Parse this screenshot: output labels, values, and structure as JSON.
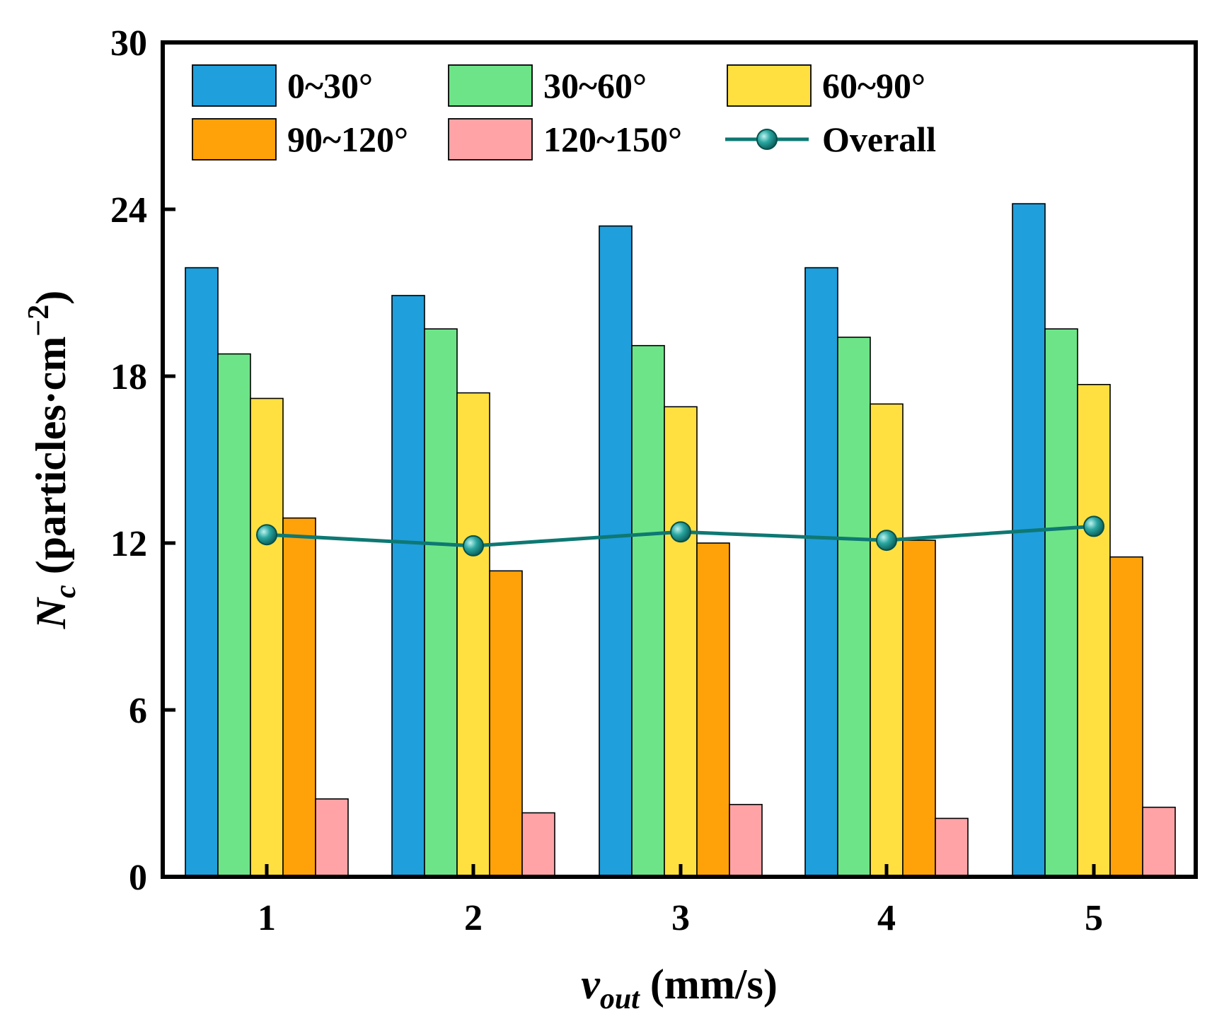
{
  "chart_data": {
    "type": "bar",
    "categories": [
      "1",
      "2",
      "3",
      "4",
      "5"
    ],
    "xlabel": {
      "main": "v",
      "sub": "out",
      "unit": " (mm/s)"
    },
    "ylabel": {
      "main": "N",
      "sub": "c",
      "unit": " (particles·cm",
      "sup": "−2",
      "close": ")"
    },
    "ylim": [
      0,
      30
    ],
    "yticks": [
      "0",
      "6",
      "12",
      "18",
      "24",
      "30"
    ],
    "grid": false,
    "legend_position": "top",
    "series": [
      {
        "name": "0~30°",
        "color": "#1f9fdc",
        "values": [
          21.9,
          20.9,
          23.4,
          21.9,
          24.2
        ]
      },
      {
        "name": "30~60°",
        "color": "#6de487",
        "values": [
          18.8,
          19.7,
          19.1,
          19.4,
          19.7
        ]
      },
      {
        "name": "60~90°",
        "color": "#ffe040",
        "values": [
          17.2,
          17.4,
          16.9,
          17.0,
          17.7
        ]
      },
      {
        "name": "90~120°",
        "color": "#ffa20a",
        "values": [
          12.9,
          11.0,
          12.0,
          12.1,
          11.5
        ]
      },
      {
        "name": "120~150°",
        "color": "#ffa3a6",
        "values": [
          2.8,
          2.3,
          2.6,
          2.1,
          2.5
        ]
      }
    ],
    "line_series": {
      "name": "Overall",
      "color": "#0e7873",
      "values": [
        12.3,
        11.9,
        12.4,
        12.1,
        12.6
      ]
    }
  }
}
